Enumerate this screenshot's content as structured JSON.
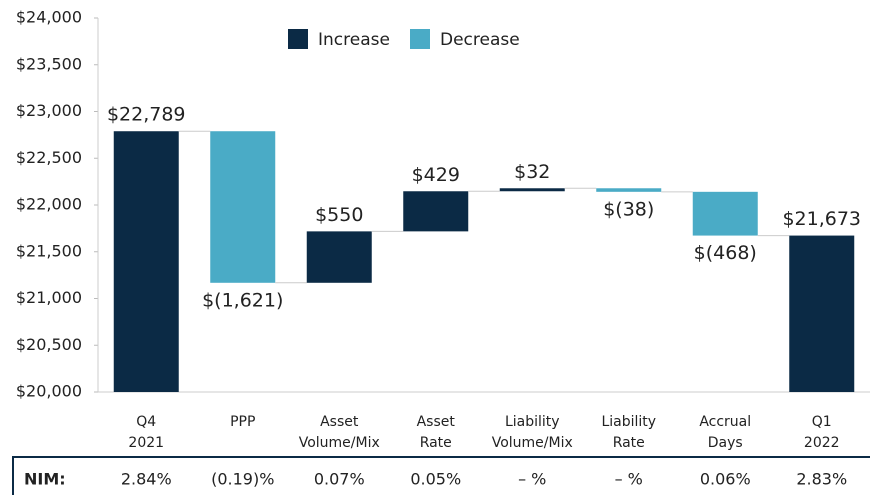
{
  "chart_data": {
    "type": "waterfall",
    "categories": [
      "Q4 2021",
      "PPP",
      "Asset Volume/Mix",
      "Asset Rate",
      "Liability Volume/Mix",
      "Liability Rate",
      "Accrual Days",
      "Q1 2022"
    ],
    "values": [
      22789,
      -1621,
      550,
      429,
      32,
      -38,
      -468,
      21673
    ],
    "value_labels": [
      "$22,789",
      "$(1,621)",
      "$550",
      "$429",
      "$32",
      "$(38)",
      "$(468)",
      "$21,673"
    ],
    "measures": [
      "total",
      "relative",
      "relative",
      "relative",
      "relative",
      "relative",
      "relative",
      "total"
    ],
    "legend": [
      {
        "name": "Increase",
        "color": "#0b2a45"
      },
      {
        "name": "Decrease",
        "color": "#4aabc6"
      }
    ],
    "ylim": [
      20000,
      24000
    ],
    "yticks": [
      {
        "value": 20000,
        "label": "$20,000"
      },
      {
        "value": 20500,
        "label": "$20,500"
      },
      {
        "value": 21000,
        "label": "$21,000"
      },
      {
        "value": 21500,
        "label": "$21,500"
      },
      {
        "value": 22000,
        "label": "$22,000"
      },
      {
        "value": 22500,
        "label": "$22,500"
      },
      {
        "value": 23000,
        "label": "$23,000"
      },
      {
        "value": 23500,
        "label": "$23,500"
      },
      {
        "value": 24000,
        "label": "$24,000"
      }
    ],
    "table": {
      "label": "NIM:",
      "values": [
        "2.84%",
        "(0.19)%",
        "0.07%",
        "0.05%",
        "– %",
        "– %",
        "0.06%",
        "2.83%"
      ]
    }
  }
}
